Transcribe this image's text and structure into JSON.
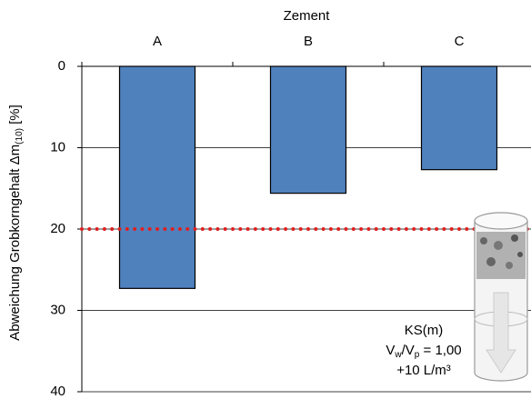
{
  "chart_data": {
    "type": "bar",
    "title": "Zement",
    "ylabel": [
      "Abweichung Grobkorngehalt Δm",
      "(10)",
      " [%]"
    ],
    "categories": [
      "A",
      "B",
      "C"
    ],
    "values": [
      27.3,
      15.6,
      12.7
    ],
    "color": "#4f81bd",
    "ylim": [
      0,
      40
    ],
    "yticks": [
      0,
      10,
      20,
      30,
      40
    ],
    "y_inverted": true,
    "grid": true,
    "reference_line": {
      "value": 20,
      "color": "#e02020"
    },
    "annotation": [
      [
        "KS(m)"
      ],
      [
        "V",
        "w",
        "/V",
        "p",
        " = 1,00"
      ],
      [
        "+10 L/m³"
      ]
    ]
  }
}
